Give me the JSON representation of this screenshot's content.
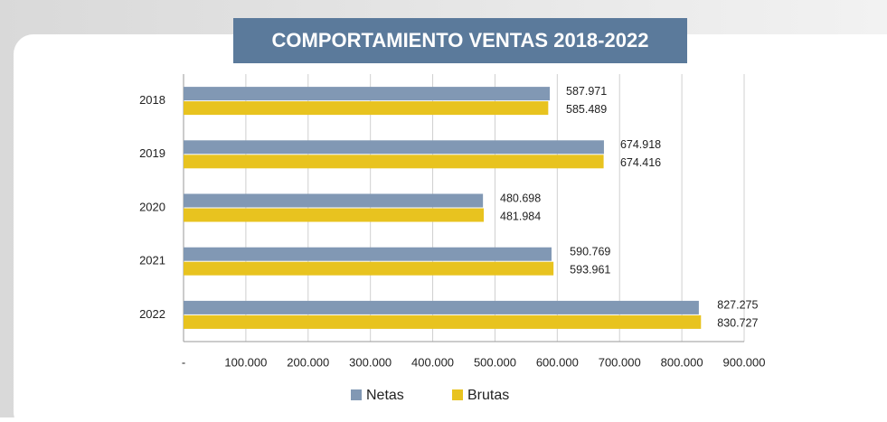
{
  "chart_data": {
    "type": "hbar",
    "title": "COMPORTAMIENTO VENTAS 2018-2022",
    "categories": [
      "2018",
      "2019",
      "2020",
      "2021",
      "2022"
    ],
    "series": [
      {
        "name": "Netas",
        "color": "#8198b4",
        "values": [
          587971,
          674918,
          480698,
          590769,
          827275
        ],
        "value_labels": [
          "587.971",
          "674.918",
          "480.698",
          "590.769",
          "827.275"
        ]
      },
      {
        "name": "Brutas",
        "color": "#e8c31f",
        "values": [
          585489,
          674416,
          481984,
          593961,
          830727
        ],
        "value_labels": [
          "585.489",
          "674.416",
          "481.984",
          "593.961",
          "830.727"
        ]
      }
    ],
    "xlim": [
      0,
      900000
    ],
    "xticks": [
      {
        "value": 0,
        "label": "-"
      },
      {
        "value": 100000,
        "label": "100.000"
      },
      {
        "value": 200000,
        "label": "200.000"
      },
      {
        "value": 300000,
        "label": "300.000"
      },
      {
        "value": 400000,
        "label": "400.000"
      },
      {
        "value": 500000,
        "label": "500.000"
      },
      {
        "value": 600000,
        "label": "600.000"
      },
      {
        "value": 700000,
        "label": "700.000"
      },
      {
        "value": 800000,
        "label": "800.000"
      },
      {
        "value": 900000,
        "label": "900.000"
      }
    ],
    "grid": true,
    "legend": "bottom"
  }
}
